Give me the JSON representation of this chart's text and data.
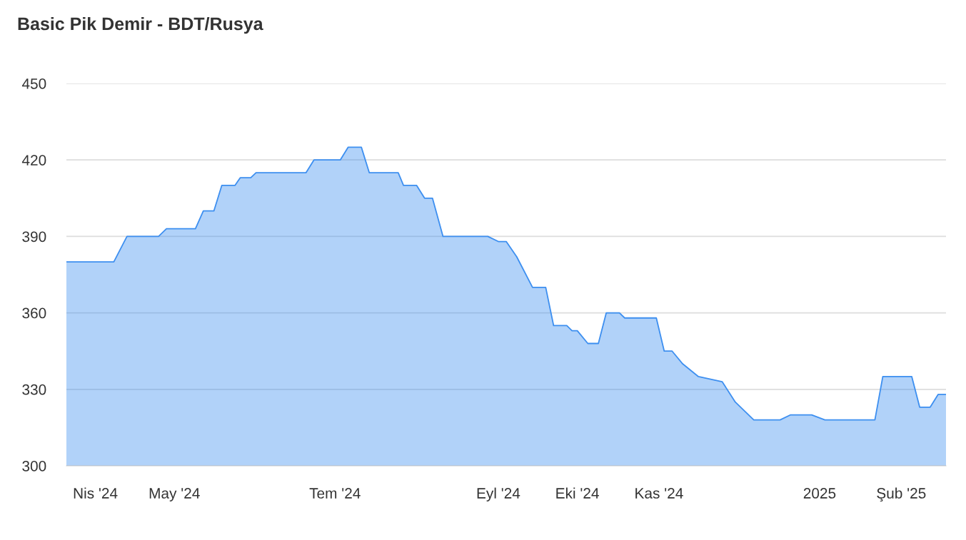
{
  "chart_data": {
    "type": "area",
    "title": "Basic Pik Demir - BDT/Rusya",
    "x": [
      "2024-03-21",
      "2024-04-08",
      "2024-04-13",
      "2024-04-25",
      "2024-04-28",
      "2024-05-09",
      "2024-05-12",
      "2024-05-16",
      "2024-05-19",
      "2024-05-24",
      "2024-05-26",
      "2024-05-30",
      "2024-06-01",
      "2024-06-20",
      "2024-06-23",
      "2024-07-03",
      "2024-07-06",
      "2024-07-11",
      "2024-07-14",
      "2024-07-25",
      "2024-07-27",
      "2024-08-01",
      "2024-08-04",
      "2024-08-07",
      "2024-08-11",
      "2024-08-28",
      "2024-09-01",
      "2024-09-04",
      "2024-09-08",
      "2024-09-14",
      "2024-09-19",
      "2024-09-22",
      "2024-09-27",
      "2024-09-29",
      "2024-10-01",
      "2024-10-05",
      "2024-10-09",
      "2024-10-12",
      "2024-10-17",
      "2024-10-19",
      "2024-10-31",
      "2024-11-03",
      "2024-11-06",
      "2024-11-10",
      "2024-11-16",
      "2024-11-25",
      "2024-11-30",
      "2024-12-07",
      "2024-12-17",
      "2024-12-21",
      "2024-12-29",
      "2025-01-03",
      "2025-01-22",
      "2025-01-25",
      "2025-02-05",
      "2025-02-08",
      "2025-02-12",
      "2025-02-15",
      "2025-02-18"
    ],
    "series": [
      {
        "color": "#3d8ff0",
        "values": [
          380,
          380,
          390,
          390,
          393,
          393,
          400,
          400,
          410,
          410,
          413,
          413,
          415,
          415,
          420,
          420,
          425,
          425,
          415,
          415,
          410,
          410,
          405,
          405,
          390,
          390,
          388,
          388,
          382,
          370,
          370,
          355,
          355,
          353,
          353,
          348,
          348,
          360,
          360,
          358,
          358,
          345,
          345,
          340,
          335,
          333,
          325,
          318,
          318,
          320,
          320,
          318,
          318,
          335,
          335,
          323,
          323,
          328,
          328
        ]
      }
    ],
    "xlim": [
      "2024-03-21",
      "2025-02-18"
    ],
    "xticks": [
      {
        "value": "2024-04-01",
        "label": "Nis '24"
      },
      {
        "value": "2024-05-01",
        "label": "May '24"
      },
      {
        "value": "2024-07-01",
        "label": "Tem '24"
      },
      {
        "value": "2024-09-01",
        "label": "Eyl '24"
      },
      {
        "value": "2024-10-01",
        "label": "Eki '24"
      },
      {
        "value": "2024-11-01",
        "label": "Kas '24"
      },
      {
        "value": "2025-01-01",
        "label": "2025"
      },
      {
        "value": "2025-02-01",
        "label": "Şub '25"
      }
    ],
    "ylim": [
      300,
      450
    ],
    "yticks": [
      300,
      330,
      360,
      390,
      420,
      450
    ],
    "grid": "y"
  }
}
